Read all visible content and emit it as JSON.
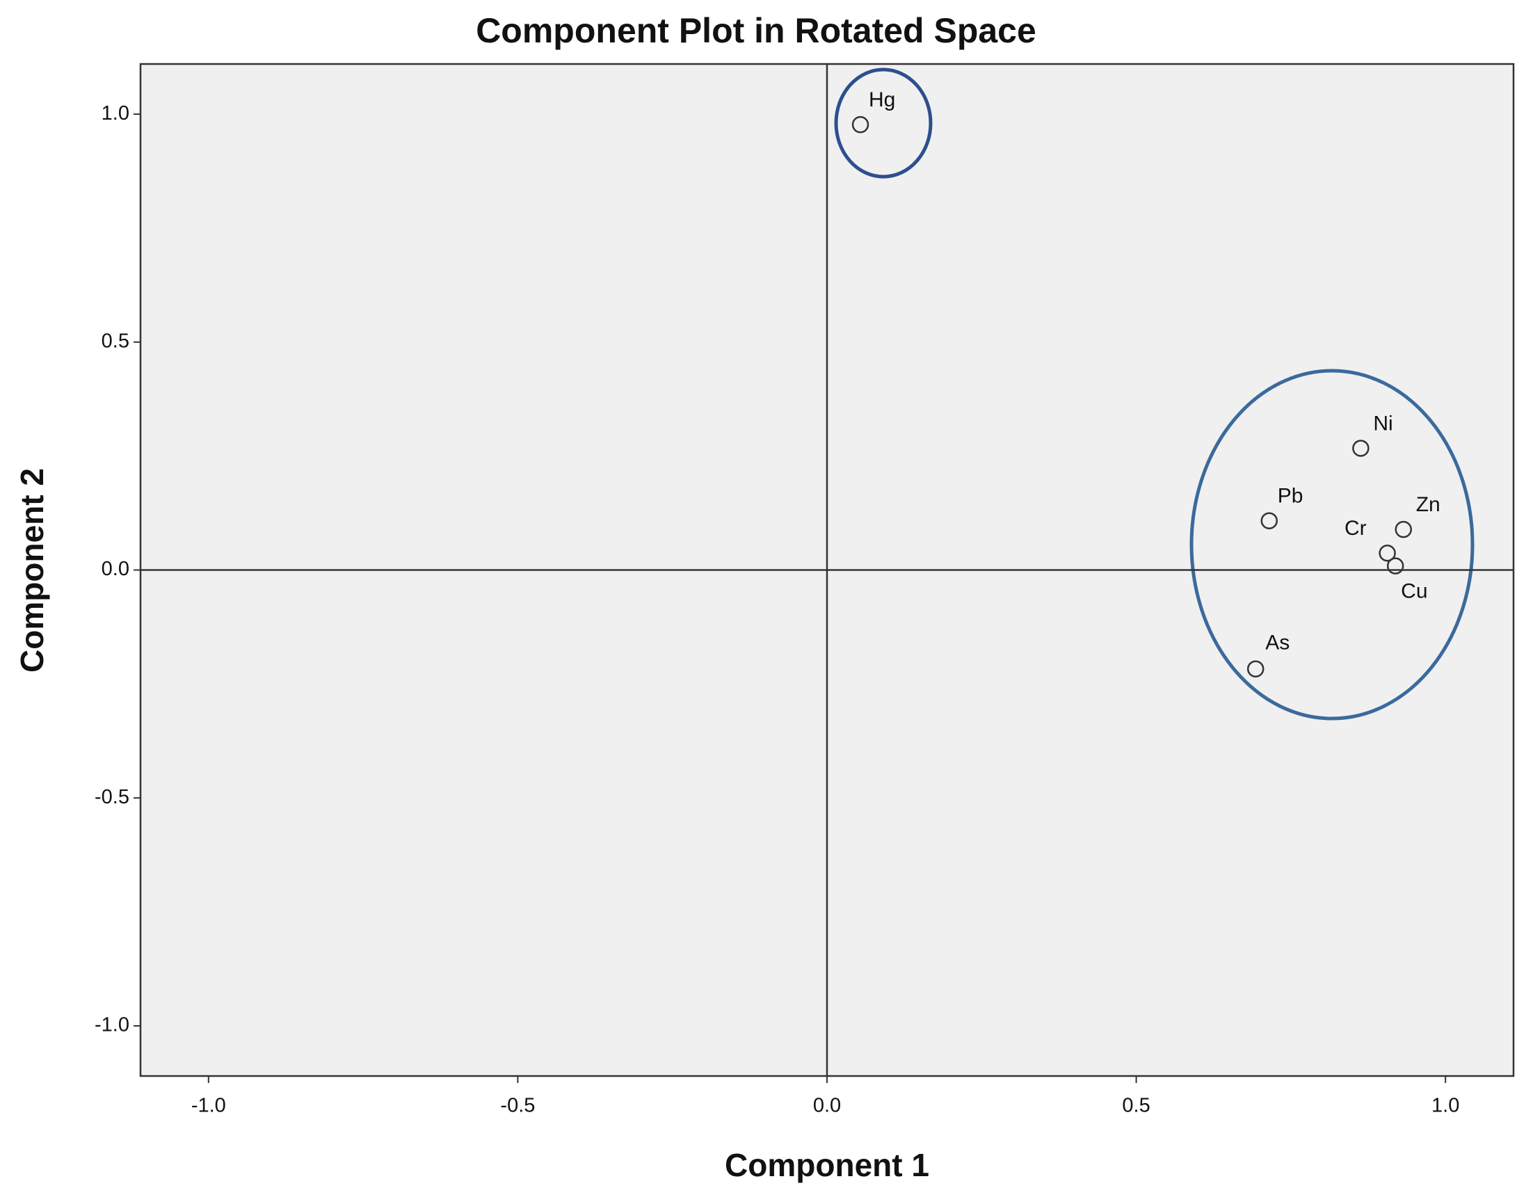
{
  "chart_data": {
    "type": "scatter",
    "title": "Component Plot in Rotated Space",
    "x_label": "Component 1",
    "y_label": "Component 2",
    "labels": [
      "Hg",
      "Ni",
      "Pb",
      "Zn",
      "Cr",
      "Cu",
      "As"
    ],
    "x": [
      0.054,
      0.863,
      0.715,
      0.932,
      0.906,
      0.919,
      0.693
    ],
    "values": [
      0.977,
      0.267,
      0.108,
      0.089,
      0.037,
      0.009,
      -0.217
    ],
    "color": "#333333",
    "xlim": [
      -1.11,
      1.11
    ],
    "ylim": [
      -1.11,
      1.11
    ],
    "xticks": [
      {
        "value": -1,
        "label": "-1.0"
      },
      {
        "value": -0.5,
        "label": "-0.5"
      },
      {
        "value": 0,
        "label": "0.0"
      },
      {
        "value": 0.5,
        "label": "0.5"
      },
      {
        "value": 1,
        "label": "1.0"
      }
    ],
    "yticks": [
      {
        "value": -1,
        "label": "-1.0"
      },
      {
        "value": -0.5,
        "label": "-0.5"
      },
      {
        "value": 0,
        "label": "0.0"
      },
      {
        "value": 0.5,
        "label": "0.5"
      },
      {
        "value": 1,
        "label": "1.0"
      }
    ],
    "grid": false
  }
}
